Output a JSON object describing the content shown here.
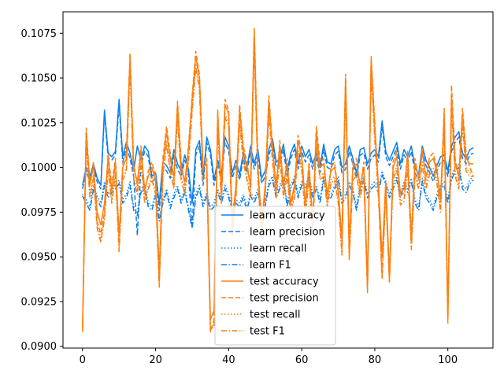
{
  "chart_data": {
    "type": "line",
    "title": "",
    "xlabel": "",
    "ylabel": "",
    "xlim": [
      -5.35,
      112.35
    ],
    "ylim": [
      0.0899,
      0.1087
    ],
    "xticks": [
      0,
      20,
      40,
      60,
      80,
      100
    ],
    "yticks": [
      0.09,
      0.0925,
      0.095,
      0.0975,
      0.1,
      0.1025,
      0.105,
      0.1075
    ],
    "ytick_labels": [
      "0.0900",
      "0.0925",
      "0.0950",
      "0.0975",
      "0.1000",
      "0.1025",
      "0.1050",
      "0.1075"
    ],
    "grid": false,
    "legend_position": "bottom-center",
    "colors": {
      "learn": "#0a7ef0",
      "test": "#ff7f0e"
    },
    "series": [
      {
        "name": "learn accuracy",
        "color": "#0a7ef0",
        "dash": "solid",
        "values": [
          0.099,
          0.1,
          0.0995,
          0.1002,
          0.0994,
          0.099,
          0.1032,
          0.1008,
          0.1006,
          0.1009,
          0.1038,
          0.1006,
          0.1014,
          0.1008,
          0.0998,
          0.1012,
          0.1004,
          0.1012,
          0.1009,
          0.0995,
          0.0997,
          0.098,
          0.1003,
          0.1001,
          0.0997,
          0.101,
          0.1002,
          0.0998,
          0.1007,
          0.0999,
          0.098,
          0.101,
          0.1015,
          0.0993,
          0.1017,
          0.101,
          0.0993,
          0.1004,
          0.0996,
          0.1017,
          0.1012,
          0.0997,
          0.1004,
          0.0996,
          0.1008,
          0.1,
          0.1012,
          0.1002,
          0.101,
          0.0994,
          0.0998,
          0.101,
          0.1016,
          0.1003,
          0.1005,
          0.1013,
          0.0998,
          0.1008,
          0.1013,
          0.1002,
          0.1012,
          0.1006,
          0.101,
          0.1002,
          0.1008,
          0.1,
          0.1013,
          0.1003,
          0.1002,
          0.101,
          0.1012,
          0.1,
          0.1002,
          0.1012,
          0.1005,
          0.0997,
          0.101,
          0.1011,
          0.1002,
          0.1008,
          0.101,
          0.1006,
          0.1026,
          0.1009,
          0.1004,
          0.1009,
          0.1014,
          0.1002,
          0.101,
          0.1006,
          0.1012,
          0.1,
          0.0996,
          0.1012,
          0.1004,
          0.1,
          0.0995,
          0.1001,
          0.1006,
          0.1007,
          0.0998,
          0.1012,
          0.1017,
          0.102,
          0.1008,
          0.1005,
          0.101,
          0.1011
        ]
      },
      {
        "name": "learn precision",
        "color": "#0a7ef0",
        "dash": "dashed",
        "values": [
          0.0988,
          0.0998,
          0.0992,
          0.1,
          0.0992,
          0.0988,
          0.103,
          0.1005,
          0.1004,
          0.1007,
          0.1035,
          0.1003,
          0.1011,
          0.1005,
          0.0995,
          0.0962,
          0.1001,
          0.1009,
          0.1006,
          0.0992,
          0.0994,
          0.0976,
          0.1,
          0.0998,
          0.0994,
          0.1007,
          0.0999,
          0.0995,
          0.1004,
          0.0996,
          0.0966,
          0.1007,
          0.1012,
          0.099,
          0.1014,
          0.1007,
          0.099,
          0.1001,
          0.0993,
          0.1014,
          0.1009,
          0.0994,
          0.1001,
          0.0993,
          0.1005,
          0.0997,
          0.1009,
          0.0999,
          0.1007,
          0.0991,
          0.0995,
          0.1007,
          0.1013,
          0.1,
          0.1002,
          0.101,
          0.0995,
          0.1005,
          0.101,
          0.0999,
          0.1009,
          0.1003,
          0.1007,
          0.0999,
          0.1005,
          0.0997,
          0.101,
          0.1,
          0.0999,
          0.1007,
          0.1009,
          0.0997,
          0.0999,
          0.1009,
          0.1002,
          0.0994,
          0.1007,
          0.1008,
          0.0999,
          0.1005,
          0.1007,
          0.1003,
          0.1023,
          0.1006,
          0.1001,
          0.1006,
          0.1011,
          0.0999,
          0.1007,
          0.1003,
          0.1009,
          0.0997,
          0.0993,
          0.1009,
          0.1001,
          0.0997,
          0.0992,
          0.0998,
          0.1003,
          0.1004,
          0.0995,
          0.1009,
          0.1014,
          0.1017,
          0.1005,
          0.1002,
          0.1007,
          0.1008
        ]
      },
      {
        "name": "learn recall",
        "color": "#0a7ef0",
        "dash": "dotted",
        "values": [
          0.0985,
          0.0982,
          0.0978,
          0.099,
          0.0984,
          0.098,
          0.0992,
          0.0985,
          0.0988,
          0.099,
          0.0993,
          0.0982,
          0.0985,
          0.0992,
          0.0978,
          0.0975,
          0.0988,
          0.099,
          0.098,
          0.0978,
          0.0986,
          0.0972,
          0.0982,
          0.0988,
          0.0979,
          0.0985,
          0.099,
          0.0982,
          0.0988,
          0.0978,
          0.0968,
          0.0985,
          0.099,
          0.098,
          0.0986,
          0.0978,
          0.098,
          0.0988,
          0.0982,
          0.099,
          0.0985,
          0.0978,
          0.0982,
          0.098,
          0.0985,
          0.0978,
          0.0986,
          0.0982,
          0.0988,
          0.0978,
          0.098,
          0.0992,
          0.0995,
          0.0985,
          0.099,
          0.0995,
          0.098,
          0.099,
          0.0995,
          0.0985,
          0.0992,
          0.099,
          0.0995,
          0.0985,
          0.099,
          0.0982,
          0.0995,
          0.0985,
          0.0985,
          0.099,
          0.0995,
          0.0982,
          0.0985,
          0.0992,
          0.0988,
          0.0978,
          0.099,
          0.0995,
          0.0985,
          0.099,
          0.0992,
          0.0988,
          0.0998,
          0.0992,
          0.0985,
          0.099,
          0.0995,
          0.0985,
          0.0992,
          0.0988,
          0.0994,
          0.0982,
          0.0978,
          0.0994,
          0.0985,
          0.0982,
          0.0978,
          0.0985,
          0.099,
          0.0992,
          0.0982,
          0.0995,
          0.1,
          0.1002,
          0.099,
          0.0988,
          0.0993,
          0.0995
        ]
      },
      {
        "name": "learn F1",
        "color": "#0a7ef0",
        "dash": "dashdot",
        "values": [
          0.0984,
          0.098,
          0.0976,
          0.0988,
          0.0982,
          0.0978,
          0.099,
          0.0983,
          0.0986,
          0.0988,
          0.0991,
          0.098,
          0.0983,
          0.099,
          0.0976,
          0.0973,
          0.0986,
          0.0988,
          0.0978,
          0.0976,
          0.0984,
          0.097,
          0.098,
          0.0986,
          0.0977,
          0.0983,
          0.0988,
          0.098,
          0.0986,
          0.0976,
          0.0966,
          0.0983,
          0.0988,
          0.0978,
          0.0984,
          0.0976,
          0.0978,
          0.0986,
          0.098,
          0.0988,
          0.0983,
          0.0976,
          0.098,
          0.0978,
          0.0983,
          0.0976,
          0.0984,
          0.098,
          0.0986,
          0.0976,
          0.0978,
          0.099,
          0.0993,
          0.0983,
          0.0988,
          0.0993,
          0.0978,
          0.0988,
          0.0993,
          0.0983,
          0.099,
          0.0988,
          0.0993,
          0.0983,
          0.0988,
          0.098,
          0.0993,
          0.0983,
          0.0983,
          0.0988,
          0.0993,
          0.098,
          0.0983,
          0.099,
          0.0986,
          0.0976,
          0.0988,
          0.0993,
          0.0983,
          0.0988,
          0.099,
          0.0986,
          0.0996,
          0.099,
          0.0983,
          0.0988,
          0.0993,
          0.0983,
          0.099,
          0.0986,
          0.0992,
          0.098,
          0.0976,
          0.0992,
          0.0983,
          0.098,
          0.0976,
          0.0983,
          0.0988,
          0.099,
          0.098,
          0.0993,
          0.0998,
          0.1,
          0.0988,
          0.0986,
          0.0991,
          0.0993
        ]
      },
      {
        "name": "test accuracy",
        "color": "#ff7f0e",
        "dash": "solid",
        "values": [
          0.0908,
          0.102,
          0.099,
          0.1001,
          0.0975,
          0.0968,
          0.098,
          0.1005,
          0.0987,
          0.1003,
          0.0962,
          0.1,
          0.1005,
          0.1062,
          0.1,
          0.0992,
          0.101,
          0.0988,
          0.0995,
          0.1,
          0.0992,
          0.0942,
          0.1002,
          0.102,
          0.1005,
          0.0995,
          0.1035,
          0.1,
          0.0992,
          0.101,
          0.1038,
          0.1062,
          0.105,
          0.1,
          0.1002,
          0.0915,
          0.092,
          0.103,
          0.0988,
          0.1035,
          0.103,
          0.097,
          0.099,
          0.1032,
          0.101,
          0.1,
          0.099,
          0.1075,
          0.1,
          0.0968,
          0.099,
          0.1037,
          0.101,
          0.099,
          0.1012,
          0.099,
          0.1002,
          0.098,
          0.099,
          0.1015,
          0.1005,
          0.098,
          0.1,
          0.097,
          0.102,
          0.1,
          0.1002,
          0.0985,
          0.0998,
          0.1,
          0.0988,
          0.096,
          0.105,
          0.0958,
          0.1,
          0.1002,
          0.099,
          0.1,
          0.0935,
          0.106,
          0.1022,
          0.099,
          0.095,
          0.0992,
          0.094,
          0.1,
          0.1006,
          0.0986,
          0.0988,
          0.1006,
          0.0962,
          0.1002,
          0.0995,
          0.1008,
          0.0995,
          0.1003,
          0.1005,
          0.0998,
          0.0982,
          0.103,
          0.0918,
          0.104,
          0.1002,
          0.0995,
          0.103,
          0.1005,
          0.1002,
          0.1002
        ]
      },
      {
        "name": "test precision",
        "color": "#ff7f0e",
        "dash": "dashed",
        "values": [
          0.091,
          0.1022,
          0.0992,
          0.1003,
          0.097,
          0.0963,
          0.0975,
          0.1007,
          0.099,
          0.1005,
          0.0958,
          0.1002,
          0.1008,
          0.1064,
          0.1002,
          0.099,
          0.1012,
          0.0985,
          0.0998,
          0.1003,
          0.0995,
          0.0936,
          0.1005,
          0.1023,
          0.1008,
          0.0993,
          0.1037,
          0.1003,
          0.099,
          0.1012,
          0.104,
          0.1065,
          0.1052,
          0.0998,
          0.1005,
          0.0908,
          0.0915,
          0.1032,
          0.0985,
          0.1038,
          0.1032,
          0.0966,
          0.0988,
          0.1035,
          0.1012,
          0.1003,
          0.0988,
          0.1078,
          0.1003,
          0.0963,
          0.0988,
          0.104,
          0.1012,
          0.0988,
          0.1015,
          0.0988,
          0.1005,
          0.0978,
          0.0988,
          0.1018,
          0.1008,
          0.0978,
          0.1003,
          0.0966,
          0.1023,
          0.1003,
          0.1005,
          0.0982,
          0.1,
          0.1003,
          0.0985,
          0.0955,
          0.1052,
          0.0952,
          0.1003,
          0.1005,
          0.0988,
          0.1003,
          0.0932,
          0.1062,
          0.1025,
          0.0988,
          0.0938,
          0.099,
          0.0936,
          0.1003,
          0.1009,
          0.0984,
          0.0986,
          0.1009,
          0.0958,
          0.1005,
          0.0993,
          0.1011,
          0.0993,
          0.1006,
          0.1008,
          0.1,
          0.098,
          0.1033,
          0.0915,
          0.1046,
          0.1005,
          0.0993,
          0.1033,
          0.1008,
          0.1,
          0.0995
        ]
      },
      {
        "name": "test recall",
        "color": "#ff7f0e",
        "dash": "dotted",
        "values": [
          0.0912,
          0.1015,
          0.0985,
          0.0996,
          0.0968,
          0.096,
          0.0973,
          0.1,
          0.0982,
          0.0998,
          0.0955,
          0.0995,
          0.1,
          0.1058,
          0.0995,
          0.0987,
          0.1005,
          0.0982,
          0.099,
          0.0995,
          0.0987,
          0.0935,
          0.0997,
          0.1015,
          0.1,
          0.099,
          0.103,
          0.0995,
          0.0987,
          0.1005,
          0.1033,
          0.1058,
          0.1045,
          0.0995,
          0.0997,
          0.091,
          0.0912,
          0.1025,
          0.0982,
          0.103,
          0.1025,
          0.0964,
          0.0985,
          0.1027,
          0.1005,
          0.0995,
          0.0985,
          0.107,
          0.0995,
          0.0962,
          0.0985,
          0.1032,
          0.1005,
          0.0985,
          0.1007,
          0.0985,
          0.0997,
          0.0975,
          0.0985,
          0.101,
          0.1,
          0.0975,
          0.0995,
          0.0964,
          0.1015,
          0.0995,
          0.0997,
          0.098,
          0.0993,
          0.0995,
          0.0982,
          0.0953,
          0.1045,
          0.095,
          0.0995,
          0.0997,
          0.0985,
          0.0995,
          0.0932,
          0.1055,
          0.1017,
          0.0985,
          0.094,
          0.0987,
          0.0938,
          0.0995,
          0.1001,
          0.0981,
          0.0983,
          0.1001,
          0.0956,
          0.0997,
          0.099,
          0.1003,
          0.099,
          0.0998,
          0.1,
          0.0993,
          0.0977,
          0.1025,
          0.0915,
          0.1035,
          0.0997,
          0.099,
          0.1025,
          0.1,
          0.0997,
          0.0997
        ]
      },
      {
        "name": "test F1",
        "color": "#ff7f0e",
        "dash": "dashdot",
        "values": [
          0.0911,
          0.1014,
          0.0983,
          0.0994,
          0.0966,
          0.0958,
          0.0971,
          0.0998,
          0.098,
          0.0996,
          0.0953,
          0.0993,
          0.0998,
          0.1056,
          0.0993,
          0.0985,
          0.1003,
          0.098,
          0.0988,
          0.0993,
          0.0985,
          0.0933,
          0.0995,
          0.1013,
          0.0998,
          0.0988,
          0.1028,
          0.0993,
          0.0985,
          0.1003,
          0.1031,
          0.1056,
          0.1043,
          0.0993,
          0.0995,
          0.0909,
          0.0911,
          0.1023,
          0.098,
          0.1028,
          0.1023,
          0.0962,
          0.0983,
          0.1025,
          0.1003,
          0.0993,
          0.0983,
          0.1068,
          0.0993,
          0.096,
          0.0983,
          0.103,
          0.1003,
          0.0983,
          0.1005,
          0.0983,
          0.0995,
          0.0973,
          0.0983,
          0.1008,
          0.0998,
          0.0973,
          0.0993,
          0.0962,
          0.1013,
          0.0993,
          0.0995,
          0.0978,
          0.0991,
          0.0993,
          0.098,
          0.0951,
          0.1043,
          0.0948,
          0.0993,
          0.0995,
          0.0983,
          0.0993,
          0.093,
          0.1053,
          0.1015,
          0.0983,
          0.0938,
          0.0985,
          0.0936,
          0.0993,
          0.0999,
          0.0979,
          0.0981,
          0.0999,
          0.0954,
          0.0995,
          0.0988,
          0.1001,
          0.0988,
          0.0996,
          0.0998,
          0.0991,
          0.0975,
          0.1023,
          0.0913,
          0.1033,
          0.0995,
          0.0988,
          0.1023,
          0.0998,
          0.0995,
          0.0995
        ]
      }
    ]
  }
}
